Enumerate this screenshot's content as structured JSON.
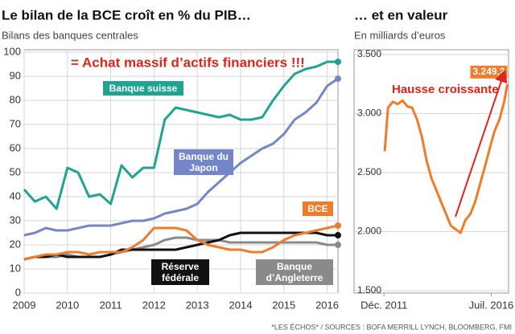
{
  "chart_data": [
    {
      "type": "line",
      "title": "Le bilan de la BCE croît en % du PIB…",
      "subtitle": "Bilans des banques centrales",
      "annotation": "= Achat massif d’actifs financiers !!!",
      "x": [
        2009,
        2009.25,
        2009.5,
        2009.75,
        2010,
        2010.25,
        2010.5,
        2010.75,
        2011,
        2011.25,
        2011.5,
        2011.75,
        2012,
        2012.25,
        2012.5,
        2012.75,
        2013,
        2013.25,
        2013.5,
        2013.75,
        2014,
        2014.25,
        2014.5,
        2014.75,
        2015,
        2015.25,
        2015.5,
        2015.75,
        2016,
        2016.25
      ],
      "series": [
        {
          "name": "Banque suisse",
          "color": "#1fa393",
          "values": [
            43,
            38,
            40,
            35,
            52,
            50,
            40,
            41,
            37,
            53,
            48,
            52,
            52,
            72,
            77,
            76,
            75,
            74,
            73,
            74,
            72,
            72,
            73,
            80,
            86,
            91,
            93,
            94,
            96,
            96
          ]
        },
        {
          "name": "Banque du Japon",
          "color": "#7486c9",
          "values": [
            24,
            25,
            27,
            26,
            26,
            27,
            28,
            28,
            28,
            29,
            30,
            30,
            31,
            33,
            34,
            35,
            37,
            42,
            46,
            50,
            54,
            57,
            60,
            62,
            66,
            72,
            75,
            79,
            86,
            89
          ]
        },
        {
          "name": "BCE",
          "color": "#f07c2a",
          "values": [
            14,
            15,
            16,
            16,
            17,
            17,
            16,
            17,
            17,
            17,
            19,
            22,
            27,
            27,
            27,
            26,
            22,
            20,
            19,
            18,
            18,
            17,
            17,
            19,
            22,
            24,
            25,
            26,
            27,
            28
          ]
        },
        {
          "name": "Réserve fédérale",
          "color": "#111111",
          "values": [
            14,
            15,
            15,
            16,
            15,
            15,
            15,
            15,
            16,
            18,
            18,
            18,
            18,
            18,
            18,
            19,
            20,
            21,
            22,
            24,
            25,
            25,
            25,
            25,
            25,
            25,
            25,
            25,
            24,
            24
          ]
        },
        {
          "name": "Banque d’Angleterre",
          "color": "#8a8a8a",
          "values": [
            14,
            15,
            15,
            15,
            16,
            15,
            15,
            15,
            16,
            17,
            18,
            19,
            20,
            22,
            23,
            23,
            22,
            22,
            22,
            21,
            21,
            21,
            21,
            21,
            21,
            21,
            21,
            21,
            20,
            20
          ]
        }
      ],
      "xlim": [
        2009,
        2016.25
      ],
      "xticks": [
        2009,
        2010,
        2011,
        2012,
        2013,
        2014,
        2015,
        2016
      ],
      "ylim": [
        0,
        101
      ],
      "yticks": [
        0,
        10,
        20,
        30,
        40,
        50,
        60,
        70,
        80,
        90,
        100
      ],
      "grid": true
    },
    {
      "type": "line",
      "title": "… et en valeur",
      "subtitle": "En milliards d’euros",
      "annotation": "Hausse croissante",
      "color": "#f07c2a",
      "x": [
        2011.91,
        2012.05,
        2012.26,
        2012.46,
        2012.67,
        2012.88,
        2013.08,
        2013.29,
        2013.5,
        2013.7,
        2013.91,
        2014.12,
        2014.32,
        2014.53,
        2014.74,
        2014.94,
        2015.15,
        2015.36,
        2015.57,
        2015.77,
        2015.98,
        2016.19,
        2016.39,
        2016.6,
        2016.81,
        2017.01,
        2017.15
      ],
      "values": [
        2680,
        3050,
        3100,
        3080,
        3110,
        3060,
        3050,
        2950,
        2800,
        2600,
        2450,
        2350,
        2250,
        2150,
        2050,
        2020,
        1990,
        2100,
        2150,
        2250,
        2400,
        2550,
        2700,
        2850,
        2950,
        3100,
        3249.2
      ],
      "value_labels": [
        null,
        null,
        null,
        null,
        null,
        null,
        null,
        null,
        null,
        null,
        null,
        null,
        null,
        null,
        null,
        null,
        null,
        null,
        null,
        null,
        null,
        null,
        null,
        null,
        null,
        null,
        "3.249,2"
      ],
      "xlim": [
        2010.6,
        2017.2
      ],
      "xticks": [
        {
          "value": 2011.88,
          "label": "Déc. 2011"
        },
        {
          "value": 2016.46,
          "label": "Juil. 2016"
        }
      ],
      "ylim": [
        1480,
        3540
      ],
      "yticks": [
        {
          "value": 1500,
          "label": "1.500"
        },
        {
          "value": 2000,
          "label": "2.000"
        },
        {
          "value": 2500,
          "label": "2.500"
        },
        {
          "value": 3000,
          "label": "3.000"
        },
        {
          "value": 3500,
          "label": "3.500"
        }
      ],
      "grid": true
    }
  ],
  "source": "*LES ÉCHOS* / SOURCES : BOFA MERRILL LYNCH, BLOOMBERG, FMI"
}
